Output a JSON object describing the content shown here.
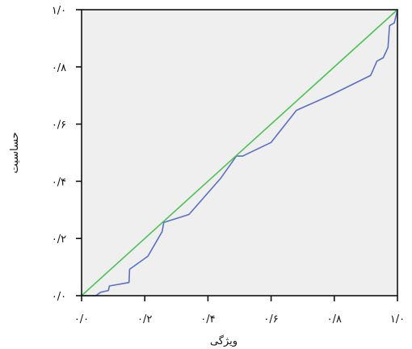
{
  "chart_data": {
    "type": "line",
    "xlabel": "ویژگی",
    "ylabel": "حساسیت",
    "xlim": [
      0,
      1
    ],
    "ylim": [
      0,
      1
    ],
    "x_ticks": [
      {
        "value": 0.0,
        "label": "۰/۰"
      },
      {
        "value": 0.2,
        "label": "۰/۲"
      },
      {
        "value": 0.4,
        "label": "۰/۴"
      },
      {
        "value": 0.6,
        "label": "۰/۶"
      },
      {
        "value": 0.8,
        "label": "۰/۸"
      },
      {
        "value": 1.0,
        "label": "۱/۰"
      }
    ],
    "y_ticks": [
      {
        "value": 0.0,
        "label": "۰/۰"
      },
      {
        "value": 0.2,
        "label": "۰/۲"
      },
      {
        "value": 0.4,
        "label": "۰/۴"
      },
      {
        "value": 0.6,
        "label": "۰/۶"
      },
      {
        "value": 0.8,
        "label": "۰/۸"
      },
      {
        "value": 1.0,
        "label": "۱/۰"
      }
    ],
    "grid": false,
    "background_color": "#efefef",
    "series": [
      {
        "color": "#5a6fc6",
        "points": [
          [
            0.0,
            0.0
          ],
          [
            0.045,
            0.0
          ],
          [
            0.06,
            0.012
          ],
          [
            0.085,
            0.018
          ],
          [
            0.088,
            0.034
          ],
          [
            0.15,
            0.046
          ],
          [
            0.152,
            0.092
          ],
          [
            0.21,
            0.138
          ],
          [
            0.255,
            0.224
          ],
          [
            0.26,
            0.256
          ],
          [
            0.34,
            0.284
          ],
          [
            0.44,
            0.41
          ],
          [
            0.49,
            0.488
          ],
          [
            0.51,
            0.488
          ],
          [
            0.6,
            0.536
          ],
          [
            0.68,
            0.648
          ],
          [
            0.79,
            0.702
          ],
          [
            0.915,
            0.77
          ],
          [
            0.935,
            0.82
          ],
          [
            0.955,
            0.832
          ],
          [
            0.97,
            0.868
          ],
          [
            0.975,
            0.944
          ],
          [
            0.99,
            0.954
          ],
          [
            1.0,
            1.0
          ]
        ]
      },
      {
        "color": "#4cc252",
        "points": [
          [
            0.0,
            0.0
          ],
          [
            1.0,
            1.0
          ]
        ]
      }
    ]
  }
}
